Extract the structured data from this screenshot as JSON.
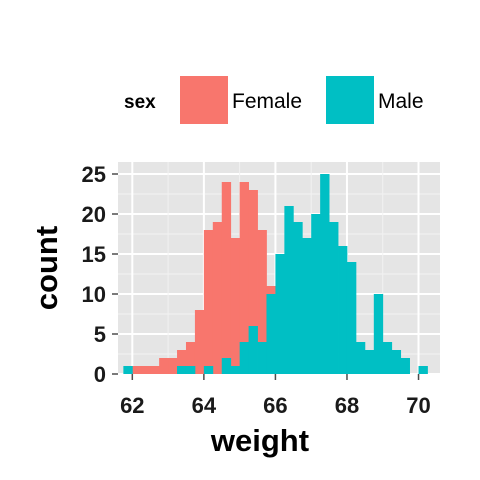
{
  "chart_data": {
    "type": "bar",
    "subtype": "histogram",
    "xlabel": "weight",
    "ylabel": "count",
    "xlim": [
      61.6,
      70.6
    ],
    "ylim": [
      0,
      26.5
    ],
    "xticks": [
      62,
      64,
      66,
      68,
      70
    ],
    "yticks": [
      0,
      5,
      10,
      15,
      20,
      25
    ],
    "grid": true,
    "legend": {
      "title": "sex",
      "position": "top"
    },
    "bin_width": 0.25,
    "series": [
      {
        "name": "Female",
        "color": "#F8766D",
        "bins": [
          {
            "x0": 61.75,
            "count": 0
          },
          {
            "x0": 62.0,
            "count": 1
          },
          {
            "x0": 62.25,
            "count": 1
          },
          {
            "x0": 62.5,
            "count": 1
          },
          {
            "x0": 62.75,
            "count": 2
          },
          {
            "x0": 63.0,
            "count": 2
          },
          {
            "x0": 63.25,
            "count": 3
          },
          {
            "x0": 63.5,
            "count": 4
          },
          {
            "x0": 63.75,
            "count": 8
          },
          {
            "x0": 64.0,
            "count": 18
          },
          {
            "x0": 64.25,
            "count": 19
          },
          {
            "x0": 64.5,
            "count": 24
          },
          {
            "x0": 64.75,
            "count": 17
          },
          {
            "x0": 65.0,
            "count": 24
          },
          {
            "x0": 65.25,
            "count": 23
          },
          {
            "x0": 65.5,
            "count": 18
          },
          {
            "x0": 65.75,
            "count": 11
          },
          {
            "x0": 66.0,
            "count": 8
          },
          {
            "x0": 66.25,
            "count": 3
          },
          {
            "x0": 66.5,
            "count": 1
          },
          {
            "x0": 66.75,
            "count": 0
          }
        ]
      },
      {
        "name": "Male",
        "color": "#00BFC4",
        "bins": [
          {
            "x0": 61.75,
            "count": 1
          },
          {
            "x0": 62.0,
            "count": 0
          },
          {
            "x0": 62.25,
            "count": 0
          },
          {
            "x0": 62.5,
            "count": 0
          },
          {
            "x0": 62.75,
            "count": 0
          },
          {
            "x0": 63.0,
            "count": 0
          },
          {
            "x0": 63.25,
            "count": 1
          },
          {
            "x0": 63.5,
            "count": 1
          },
          {
            "x0": 63.75,
            "count": 0
          },
          {
            "x0": 64.0,
            "count": 1
          },
          {
            "x0": 64.25,
            "count": 0
          },
          {
            "x0": 64.5,
            "count": 2
          },
          {
            "x0": 64.75,
            "count": 1
          },
          {
            "x0": 65.0,
            "count": 4
          },
          {
            "x0": 65.25,
            "count": 6
          },
          {
            "x0": 65.5,
            "count": 4
          },
          {
            "x0": 65.75,
            "count": 10
          },
          {
            "x0": 66.0,
            "count": 15
          },
          {
            "x0": 66.25,
            "count": 21
          },
          {
            "x0": 66.5,
            "count": 19
          },
          {
            "x0": 66.75,
            "count": 17
          },
          {
            "x0": 67.0,
            "count": 20
          },
          {
            "x0": 67.25,
            "count": 25
          },
          {
            "x0": 67.5,
            "count": 19
          },
          {
            "x0": 67.75,
            "count": 16
          },
          {
            "x0": 68.0,
            "count": 14
          },
          {
            "x0": 68.25,
            "count": 4
          },
          {
            "x0": 68.5,
            "count": 3
          },
          {
            "x0": 68.75,
            "count": 10
          },
          {
            "x0": 69.0,
            "count": 4
          },
          {
            "x0": 69.25,
            "count": 3
          },
          {
            "x0": 69.5,
            "count": 2
          },
          {
            "x0": 69.75,
            "count": 0
          },
          {
            "x0": 70.0,
            "count": 1
          },
          {
            "x0": 70.25,
            "count": 0
          }
        ]
      }
    ]
  }
}
